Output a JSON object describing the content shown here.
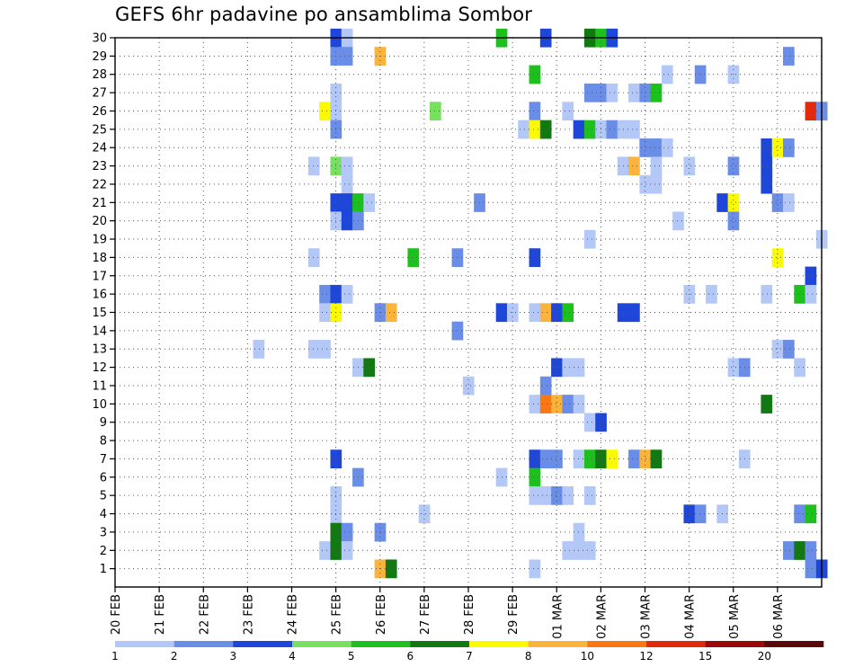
{
  "chart_data": {
    "type": "heatmap",
    "title": "GEFS 6hr padavine po ansamblima Sombor",
    "xlabel": "",
    "ylabel": "",
    "grid": true,
    "x_tick_labels": [
      "20 FEB",
      "21 FEB",
      "22 FEB",
      "23 FEB",
      "24 FEB",
      "25 FEB",
      "26 FEB",
      "27 FEB",
      "28 FEB",
      "29 FEB",
      "01 MAR",
      "02 MAR",
      "03 MAR",
      "04 MAR",
      "05 MAR",
      "06 MAR"
    ],
    "x_range_steps": [
      0,
      64
    ],
    "steps_per_day": 4,
    "y_tick_labels": [
      "1",
      "2",
      "3",
      "4",
      "5",
      "6",
      "7",
      "8",
      "9",
      "10",
      "11",
      "12",
      "13",
      "14",
      "15",
      "16",
      "17",
      "18",
      "19",
      "20",
      "21",
      "22",
      "23",
      "24",
      "25",
      "26",
      "27",
      "28",
      "29",
      "30"
    ],
    "y_range_members": [
      0,
      30
    ],
    "legend": {
      "placement": "bottom",
      "labels": [
        "1",
        "2",
        "3",
        "4",
        "5",
        "6",
        "7",
        "8",
        "10",
        "12",
        "15",
        "20"
      ],
      "colors": [
        "#b4c8f8",
        "#6a8ee8",
        "#1e46d8",
        "#78e060",
        "#1ec01e",
        "#127812",
        "#fafa00",
        "#fab43c",
        "#fa7814",
        "#e02c0c",
        "#9a0a0a",
        "#5a0808"
      ]
    },
    "cells_format": "[step, member, color_index]",
    "cells": [
      [
        20,
        30,
        2
      ],
      [
        21,
        30,
        0
      ],
      [
        35,
        30,
        4
      ],
      [
        39,
        30,
        2
      ],
      [
        43,
        30,
        5
      ],
      [
        44,
        30,
        4
      ],
      [
        45,
        30,
        2
      ],
      [
        20,
        29,
        1
      ],
      [
        21,
        29,
        1
      ],
      [
        24,
        29,
        7
      ],
      [
        61,
        29,
        1
      ],
      [
        38,
        28,
        4
      ],
      [
        50,
        28,
        0
      ],
      [
        53,
        28,
        1
      ],
      [
        56,
        28,
        0
      ],
      [
        20,
        27,
        0
      ],
      [
        43,
        27,
        1
      ],
      [
        44,
        27,
        1
      ],
      [
        45,
        27,
        0
      ],
      [
        47,
        27,
        0
      ],
      [
        48,
        27,
        1
      ],
      [
        49,
        27,
        4
      ],
      [
        19,
        26,
        6
      ],
      [
        20,
        26,
        0
      ],
      [
        29,
        26,
        3
      ],
      [
        38,
        26,
        1
      ],
      [
        41,
        26,
        0
      ],
      [
        63,
        26,
        9
      ],
      [
        64,
        26,
        1
      ],
      [
        20,
        25,
        1
      ],
      [
        37,
        25,
        0
      ],
      [
        38,
        25,
        6
      ],
      [
        39,
        25,
        5
      ],
      [
        42,
        25,
        2
      ],
      [
        43,
        25,
        4
      ],
      [
        44,
        25,
        0
      ],
      [
        45,
        25,
        1
      ],
      [
        46,
        25,
        0
      ],
      [
        47,
        25,
        0
      ],
      [
        48,
        24,
        1
      ],
      [
        49,
        24,
        1
      ],
      [
        50,
        24,
        0
      ],
      [
        59,
        24,
        2
      ],
      [
        60,
        24,
        6
      ],
      [
        61,
        24,
        1
      ],
      [
        18,
        23,
        0
      ],
      [
        20,
        23,
        3
      ],
      [
        21,
        23,
        0
      ],
      [
        46,
        23,
        0
      ],
      [
        47,
        23,
        7
      ],
      [
        49,
        23,
        0
      ],
      [
        52,
        23,
        0
      ],
      [
        56,
        23,
        1
      ],
      [
        59,
        23,
        2
      ],
      [
        21,
        22,
        0
      ],
      [
        48,
        22,
        0
      ],
      [
        49,
        22,
        0
      ],
      [
        59,
        22,
        2
      ],
      [
        20,
        21,
        2
      ],
      [
        21,
        21,
        2
      ],
      [
        22,
        21,
        4
      ],
      [
        23,
        21,
        0
      ],
      [
        33,
        21,
        1
      ],
      [
        55,
        21,
        2
      ],
      [
        56,
        21,
        6
      ],
      [
        60,
        21,
        1
      ],
      [
        61,
        21,
        0
      ],
      [
        20,
        20,
        0
      ],
      [
        21,
        20,
        2
      ],
      [
        22,
        20,
        1
      ],
      [
        51,
        20,
        0
      ],
      [
        56,
        20,
        1
      ],
      [
        43,
        19,
        0
      ],
      [
        64,
        19,
        0
      ],
      [
        18,
        18,
        0
      ],
      [
        27,
        18,
        4
      ],
      [
        31,
        18,
        1
      ],
      [
        38,
        18,
        2
      ],
      [
        60,
        18,
        6
      ],
      [
        63,
        17,
        2
      ],
      [
        19,
        16,
        1
      ],
      [
        20,
        16,
        2
      ],
      [
        21,
        16,
        0
      ],
      [
        52,
        16,
        0
      ],
      [
        54,
        16,
        0
      ],
      [
        59,
        16,
        0
      ],
      [
        62,
        16,
        4
      ],
      [
        63,
        16,
        0
      ],
      [
        19,
        15,
        0
      ],
      [
        20,
        15,
        6
      ],
      [
        24,
        15,
        1
      ],
      [
        25,
        15,
        7
      ],
      [
        35,
        15,
        2
      ],
      [
        36,
        15,
        0
      ],
      [
        38,
        15,
        0
      ],
      [
        39,
        15,
        7
      ],
      [
        40,
        15,
        2
      ],
      [
        41,
        15,
        4
      ],
      [
        46,
        15,
        2
      ],
      [
        47,
        15,
        2
      ],
      [
        31,
        14,
        1
      ],
      [
        13,
        13,
        0
      ],
      [
        18,
        13,
        0
      ],
      [
        19,
        13,
        0
      ],
      [
        60,
        13,
        0
      ],
      [
        61,
        13,
        1
      ],
      [
        22,
        12,
        0
      ],
      [
        23,
        12,
        5
      ],
      [
        40,
        12,
        2
      ],
      [
        41,
        12,
        0
      ],
      [
        42,
        12,
        0
      ],
      [
        56,
        12,
        0
      ],
      [
        57,
        12,
        1
      ],
      [
        62,
        12,
        0
      ],
      [
        32,
        11,
        0
      ],
      [
        39,
        11,
        1
      ],
      [
        38,
        10,
        0
      ],
      [
        39,
        10,
        8
      ],
      [
        40,
        10,
        7
      ],
      [
        41,
        10,
        1
      ],
      [
        42,
        10,
        0
      ],
      [
        59,
        10,
        5
      ],
      [
        43,
        9,
        0
      ],
      [
        44,
        9,
        2
      ],
      [
        20,
        7,
        2
      ],
      [
        38,
        7,
        2
      ],
      [
        39,
        7,
        1
      ],
      [
        40,
        7,
        1
      ],
      [
        42,
        7,
        0
      ],
      [
        43,
        7,
        4
      ],
      [
        44,
        7,
        5
      ],
      [
        45,
        7,
        6
      ],
      [
        47,
        7,
        1
      ],
      [
        48,
        7,
        7
      ],
      [
        49,
        7,
        5
      ],
      [
        57,
        7,
        0
      ],
      [
        22,
        6,
        1
      ],
      [
        35,
        6,
        0
      ],
      [
        38,
        6,
        4
      ],
      [
        20,
        5,
        0
      ],
      [
        38,
        5,
        0
      ],
      [
        39,
        5,
        0
      ],
      [
        40,
        5,
        1
      ],
      [
        41,
        5,
        0
      ],
      [
        43,
        5,
        0
      ],
      [
        20,
        4,
        0
      ],
      [
        28,
        4,
        0
      ],
      [
        52,
        4,
        2
      ],
      [
        53,
        4,
        1
      ],
      [
        55,
        4,
        0
      ],
      [
        62,
        4,
        1
      ],
      [
        63,
        4,
        4
      ],
      [
        20,
        3,
        5
      ],
      [
        21,
        3,
        1
      ],
      [
        24,
        3,
        1
      ],
      [
        42,
        3,
        0
      ],
      [
        19,
        2,
        0
      ],
      [
        20,
        2,
        5
      ],
      [
        21,
        2,
        0
      ],
      [
        41,
        2,
        0
      ],
      [
        42,
        2,
        0
      ],
      [
        43,
        2,
        0
      ],
      [
        61,
        2,
        1
      ],
      [
        62,
        2,
        5
      ],
      [
        63,
        2,
        1
      ],
      [
        24,
        1,
        7
      ],
      [
        25,
        1,
        5
      ],
      [
        38,
        1,
        0
      ],
      [
        63,
        1,
        1
      ],
      [
        64,
        1,
        2
      ]
    ]
  }
}
